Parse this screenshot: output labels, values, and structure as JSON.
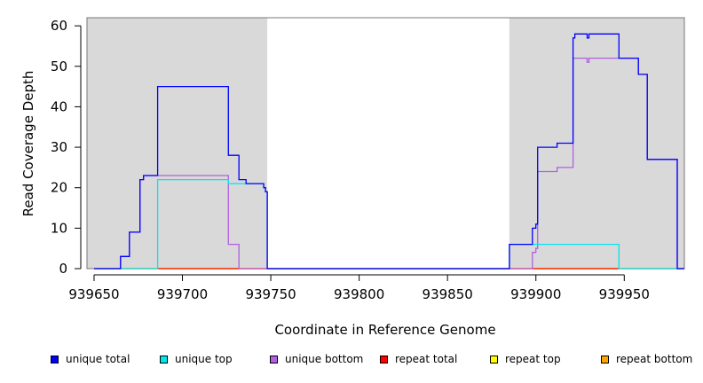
{
  "chart_data": {
    "type": "line",
    "title": "",
    "xlabel": "Coordinate in Reference Genome",
    "ylabel": "Read Coverage Depth",
    "xlim": [
      939646,
      939984
    ],
    "ylim": [
      0,
      62
    ],
    "x_ticks": [
      939650,
      939700,
      939750,
      939800,
      939850,
      939900,
      939950
    ],
    "y_ticks": [
      0,
      10,
      20,
      30,
      40,
      50,
      60
    ],
    "shaded_regions": [
      [
        939646,
        939748
      ],
      [
        939885,
        939984
      ]
    ],
    "legend_position": "bottom",
    "series": [
      {
        "name": "unique total",
        "color": "#0000ff",
        "points": [
          [
            939650,
            0
          ],
          [
            939665,
            0
          ],
          [
            939665,
            3
          ],
          [
            939670,
            3
          ],
          [
            939670,
            9
          ],
          [
            939676,
            9
          ],
          [
            939676,
            22
          ],
          [
            939678,
            22
          ],
          [
            939678,
            23
          ],
          [
            939686,
            23
          ],
          [
            939686,
            45
          ],
          [
            939726,
            45
          ],
          [
            939726,
            28
          ],
          [
            939732,
            28
          ],
          [
            939732,
            22
          ],
          [
            939736,
            22
          ],
          [
            939736,
            21
          ],
          [
            939746,
            21
          ],
          [
            939746,
            20
          ],
          [
            939747,
            20
          ],
          [
            939747,
            19
          ],
          [
            939748,
            19
          ],
          [
            939748,
            0
          ],
          [
            939885,
            0
          ],
          [
            939885,
            6
          ],
          [
            939898,
            6
          ],
          [
            939898,
            10
          ],
          [
            939900,
            10
          ],
          [
            939900,
            11
          ],
          [
            939901,
            11
          ],
          [
            939901,
            30
          ],
          [
            939912,
            30
          ],
          [
            939912,
            31
          ],
          [
            939921,
            31
          ],
          [
            939921,
            57
          ],
          [
            939922,
            57
          ],
          [
            939922,
            58
          ],
          [
            939929,
            58
          ],
          [
            939929,
            57
          ],
          [
            939930,
            57
          ],
          [
            939930,
            58
          ],
          [
            939947,
            58
          ],
          [
            939947,
            52
          ],
          [
            939958,
            52
          ],
          [
            939958,
            48
          ],
          [
            939963,
            48
          ],
          [
            939963,
            27
          ],
          [
            939980,
            27
          ],
          [
            939980,
            0
          ],
          [
            939984,
            0
          ]
        ]
      },
      {
        "name": "unique top",
        "color": "#00e5ee",
        "points": [
          [
            939650,
            0
          ],
          [
            939686,
            0
          ],
          [
            939686,
            22
          ],
          [
            939726,
            22
          ],
          [
            939726,
            21
          ],
          [
            939746,
            21
          ],
          [
            939746,
            20
          ],
          [
            939747,
            20
          ],
          [
            939747,
            19
          ],
          [
            939748,
            19
          ],
          [
            939748,
            0
          ],
          [
            939885,
            0
          ],
          [
            939885,
            6
          ],
          [
            939947,
            6
          ],
          [
            939947,
            0
          ],
          [
            939984,
            0
          ]
        ]
      },
      {
        "name": "unique bottom",
        "color": "#b060e0",
        "points": [
          [
            939650,
            0
          ],
          [
            939665,
            0
          ],
          [
            939665,
            3
          ],
          [
            939670,
            3
          ],
          [
            939670,
            9
          ],
          [
            939676,
            9
          ],
          [
            939676,
            22
          ],
          [
            939678,
            22
          ],
          [
            939678,
            23
          ],
          [
            939726,
            23
          ],
          [
            939726,
            6
          ],
          [
            939732,
            6
          ],
          [
            939732,
            0
          ],
          [
            939898,
            0
          ],
          [
            939898,
            4
          ],
          [
            939900,
            4
          ],
          [
            939900,
            5
          ],
          [
            939901,
            5
          ],
          [
            939901,
            24
          ],
          [
            939912,
            24
          ],
          [
            939912,
            25
          ],
          [
            939921,
            25
          ],
          [
            939921,
            52
          ],
          [
            939929,
            52
          ],
          [
            939929,
            51
          ],
          [
            939930,
            51
          ],
          [
            939930,
            52
          ],
          [
            939947,
            52
          ],
          [
            939958,
            52
          ],
          [
            939958,
            48
          ],
          [
            939963,
            48
          ],
          [
            939963,
            27
          ],
          [
            939980,
            27
          ],
          [
            939980,
            0
          ],
          [
            939984,
            0
          ]
        ]
      },
      {
        "name": "repeat total",
        "color": "#ff0000",
        "points": [
          [
            939650,
            0
          ],
          [
            939984,
            0
          ]
        ]
      },
      {
        "name": "repeat top",
        "color": "#ffff00",
        "points": [
          [
            939650,
            0
          ],
          [
            939984,
            0
          ]
        ]
      },
      {
        "name": "repeat bottom",
        "color": "#ffa500",
        "points": [
          [
            939686,
            0
          ],
          [
            939748,
            0
          ],
          [
            939898,
            0
          ],
          [
            939947,
            0
          ]
        ]
      }
    ]
  },
  "colors": {
    "shade": "#d9d9d9",
    "axis": "#000000",
    "frame": "#777777"
  }
}
